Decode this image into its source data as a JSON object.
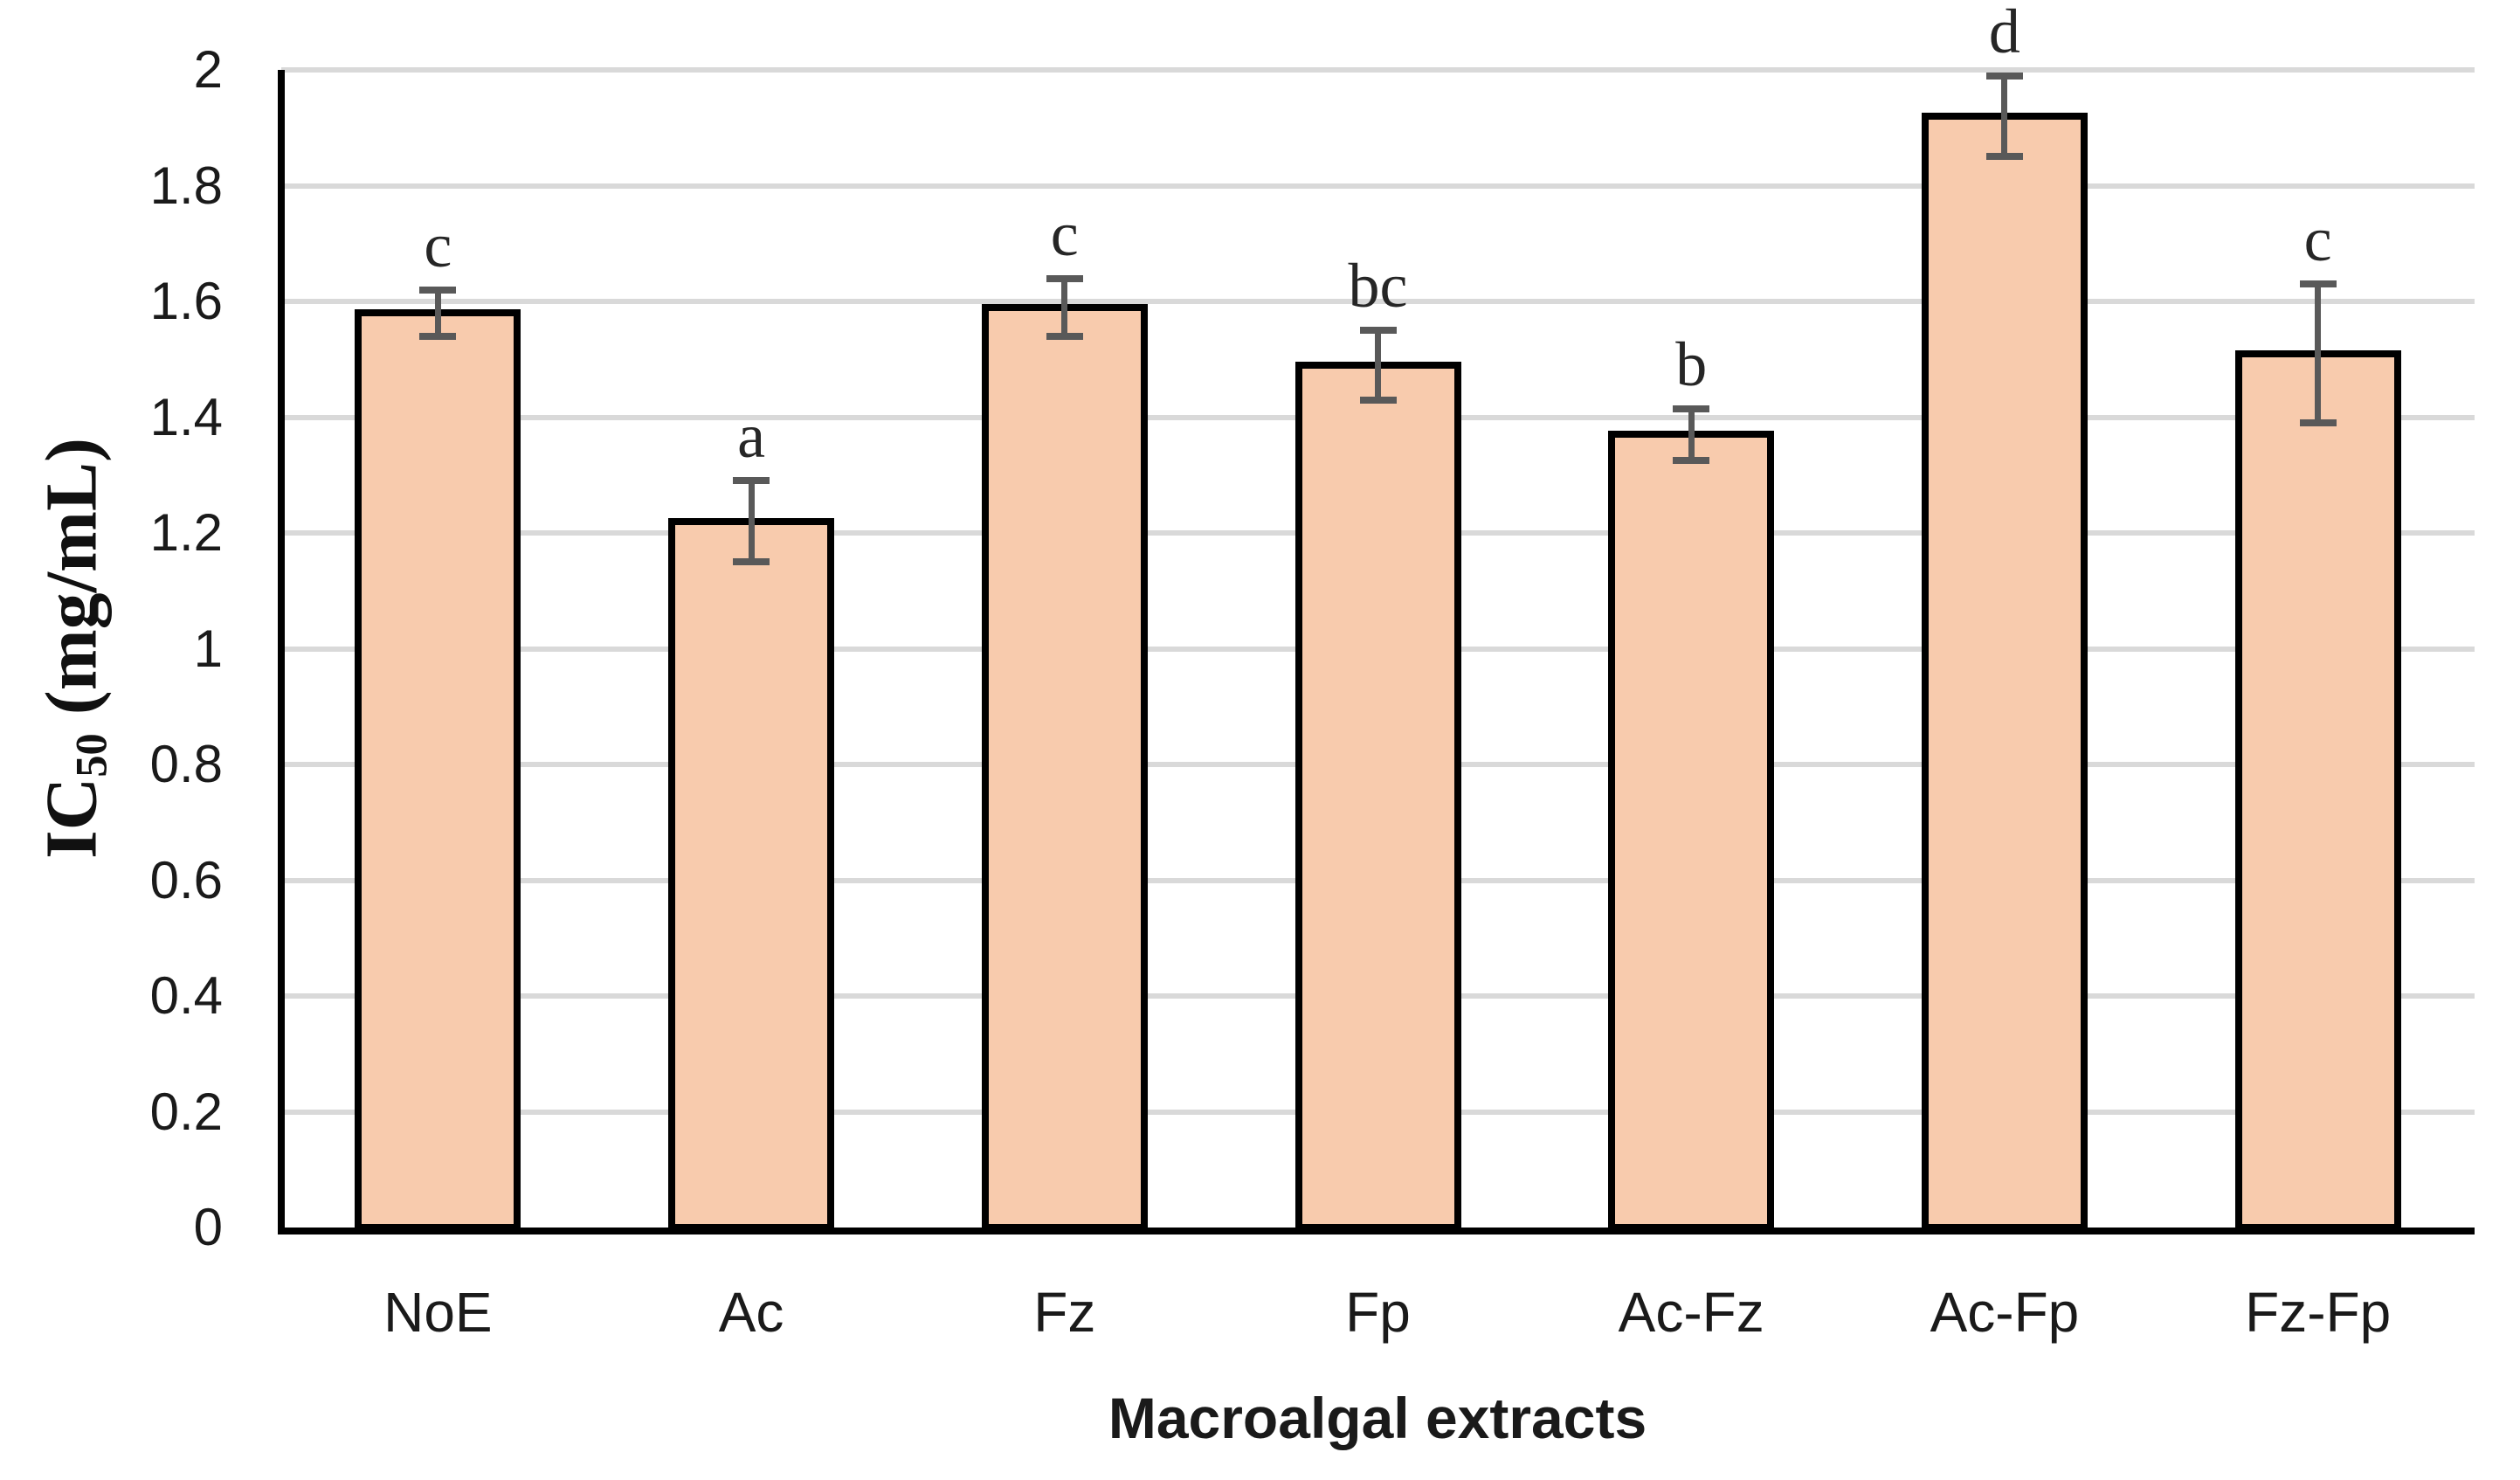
{
  "chart_data": {
    "type": "bar",
    "title": "",
    "xlabel": "Macroalgal extracts",
    "ylabel": "IC50 (mg/mL)",
    "ylabel_prefix": "IC",
    "ylabel_subscript": "50",
    "ylabel_suffix": " (mg/mL)",
    "categories": [
      "NoE",
      "Ac",
      "Fz",
      "Fp",
      "Ac-Fz",
      "Ac-Fp",
      "Fz-Fp"
    ],
    "values": [
      1.58,
      1.22,
      1.59,
      1.49,
      1.37,
      1.92,
      1.51
    ],
    "errors": [
      0.04,
      0.07,
      0.05,
      0.06,
      0.045,
      0.07,
      0.12
    ],
    "sig_letters": [
      "c",
      "a",
      "c",
      "bc",
      "b",
      "d",
      "c"
    ],
    "ylim": [
      0,
      2
    ],
    "ytick_step": 0.2,
    "ytick_labels": [
      "0",
      "0.2",
      "0.4",
      "0.6",
      "0.8",
      "1",
      "1.2",
      "1.4",
      "1.6",
      "1.8",
      "2"
    ],
    "grid": true,
    "legend": false,
    "colors": {
      "bar_fill": "#F8CBAD",
      "bar_border": "#000000",
      "error_bar": "#595959",
      "gridline": "#D9D9D9",
      "axis": "#000000",
      "text": "#1a1a1a"
    }
  }
}
